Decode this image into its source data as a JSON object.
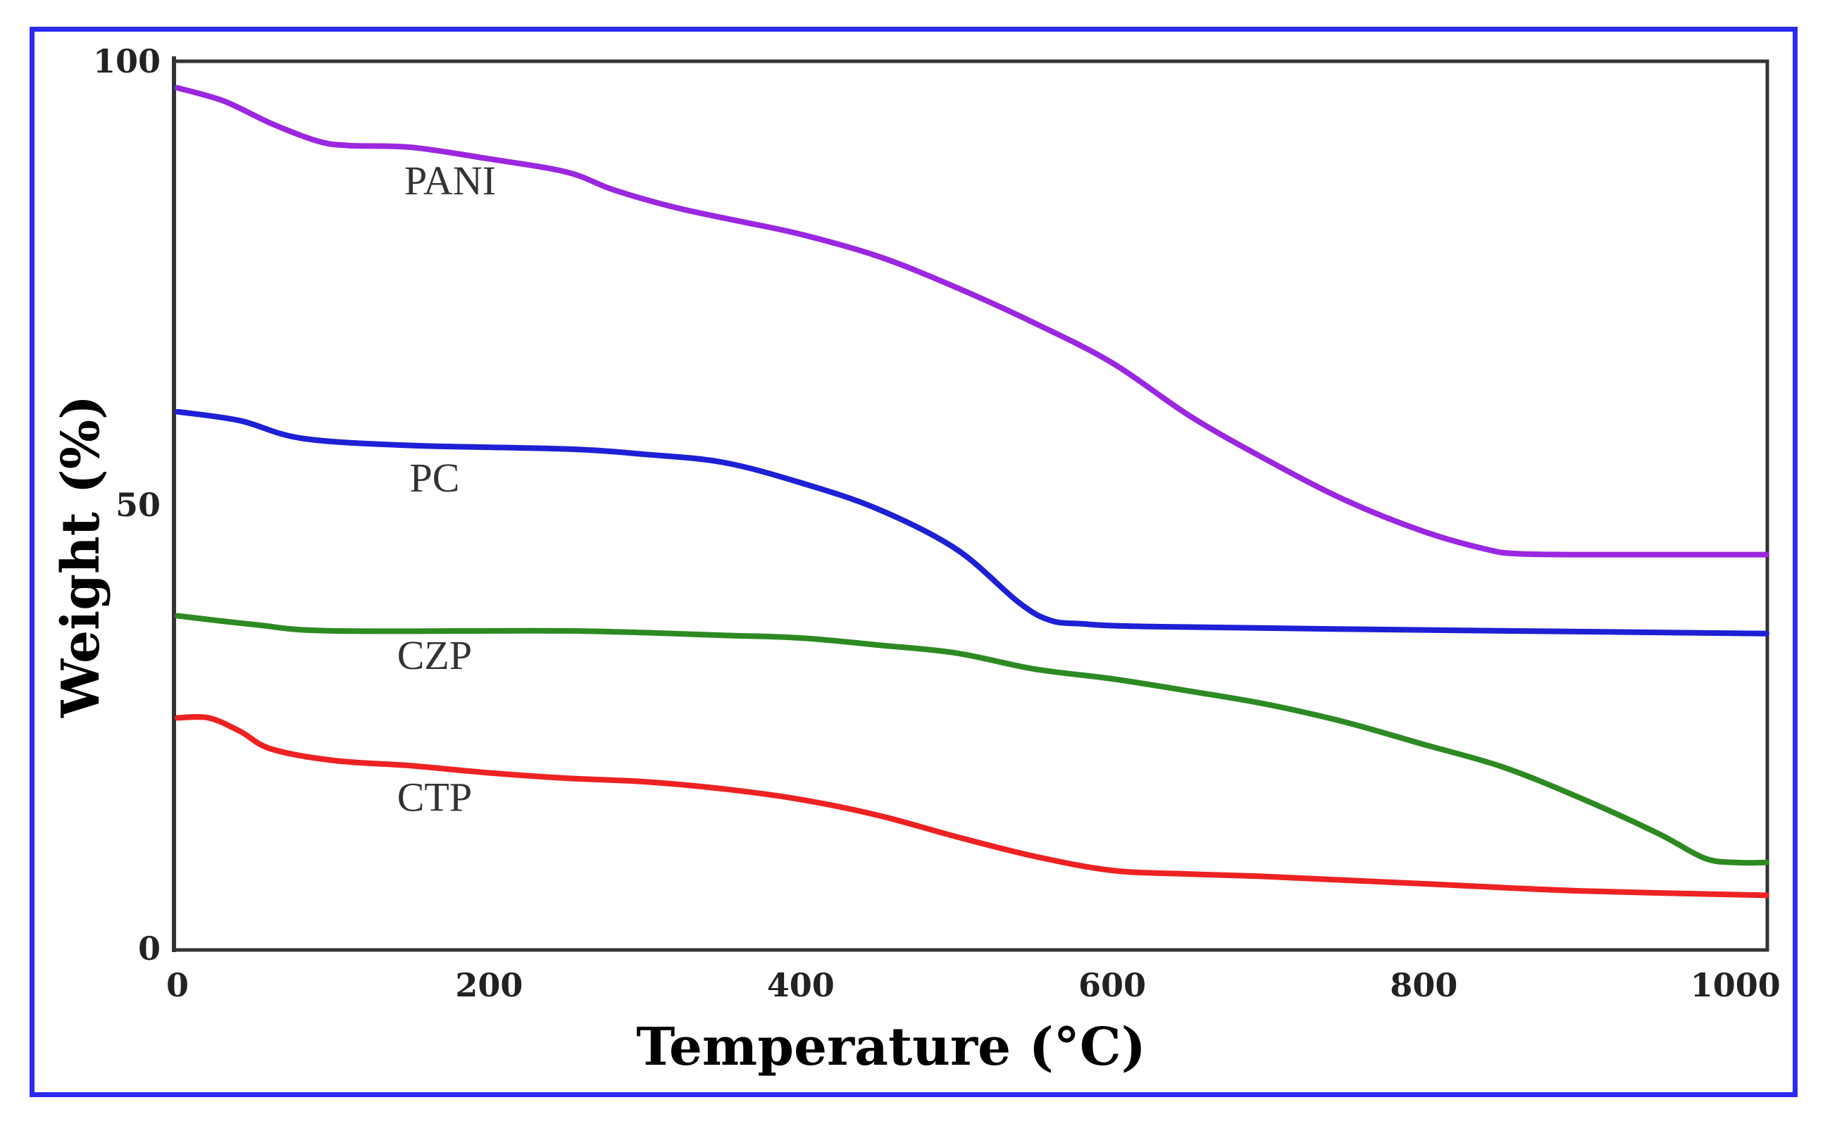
{
  "chart_data": {
    "type": "line",
    "title": "",
    "xlabel": "Temperature (°C)",
    "ylabel": "Weight (%)",
    "xlim": [
      0,
      1020
    ],
    "ylim": [
      0,
      100
    ],
    "x_ticks": [
      {
        "value": 0,
        "label": "0"
      },
      {
        "value": 200,
        "label": "200"
      },
      {
        "value": 400,
        "label": "400"
      },
      {
        "value": 600,
        "label": "600"
      },
      {
        "value": 800,
        "label": "800"
      },
      {
        "value": 1000,
        "label": "1000"
      }
    ],
    "y_ticks": [
      {
        "value": 0,
        "label": "0"
      },
      {
        "value": 50,
        "label": "50"
      },
      {
        "value": 100,
        "label": "100"
      }
    ],
    "grid": false,
    "series": [
      {
        "name": "PANI",
        "color": "#9b27e0",
        "label_at": [
          175,
          85
        ],
        "points": [
          [
            0,
            97
          ],
          [
            30,
            95.5
          ],
          [
            60,
            93
          ],
          [
            90,
            91
          ],
          [
            110,
            90.5
          ],
          [
            150,
            90.3
          ],
          [
            200,
            89
          ],
          [
            250,
            87.5
          ],
          [
            280,
            85.5
          ],
          [
            320,
            83.5
          ],
          [
            360,
            82
          ],
          [
            400,
            80.5
          ],
          [
            450,
            78
          ],
          [
            500,
            74.5
          ],
          [
            550,
            70.5
          ],
          [
            600,
            66
          ],
          [
            650,
            60
          ],
          [
            700,
            55
          ],
          [
            750,
            50.5
          ],
          [
            800,
            47
          ],
          [
            840,
            45
          ],
          [
            860,
            44.5
          ],
          [
            900,
            44.4
          ],
          [
            1020,
            44.4
          ]
        ]
      },
      {
        "name": "PC",
        "color": "#1d20d4",
        "label_at": [
          165,
          51.5
        ],
        "points": [
          [
            0,
            60.5
          ],
          [
            40,
            59.5
          ],
          [
            80,
            57.5
          ],
          [
            150,
            56.7
          ],
          [
            250,
            56.3
          ],
          [
            300,
            55.7
          ],
          [
            350,
            54.8
          ],
          [
            400,
            52.5
          ],
          [
            450,
            49.5
          ],
          [
            500,
            45
          ],
          [
            540,
            39
          ],
          [
            560,
            37
          ],
          [
            580,
            36.6
          ],
          [
            620,
            36.3
          ],
          [
            750,
            36
          ],
          [
            1020,
            35.5
          ]
        ]
      },
      {
        "name": "CZP",
        "color": "#2d8a22",
        "label_at": [
          165,
          31.5
        ],
        "points": [
          [
            0,
            37.5
          ],
          [
            50,
            36.5
          ],
          [
            100,
            35.8
          ],
          [
            250,
            35.8
          ],
          [
            350,
            35.3
          ],
          [
            400,
            35
          ],
          [
            450,
            34.2
          ],
          [
            500,
            33.3
          ],
          [
            550,
            31.5
          ],
          [
            600,
            30.4
          ],
          [
            650,
            29
          ],
          [
            700,
            27.5
          ],
          [
            750,
            25.5
          ],
          [
            800,
            23
          ],
          [
            850,
            20.5
          ],
          [
            900,
            17
          ],
          [
            950,
            13
          ],
          [
            980,
            10.2
          ],
          [
            1000,
            9.7
          ],
          [
            1020,
            9.7
          ]
        ]
      },
      {
        "name": "CTP",
        "color": "#ee2222",
        "label_at": [
          165,
          15.5
        ],
        "points": [
          [
            0,
            26
          ],
          [
            20,
            26
          ],
          [
            40,
            24.5
          ],
          [
            60,
            22.5
          ],
          [
            100,
            21.2
          ],
          [
            150,
            20.6
          ],
          [
            200,
            19.8
          ],
          [
            250,
            19.2
          ],
          [
            300,
            18.8
          ],
          [
            350,
            18
          ],
          [
            400,
            16.8
          ],
          [
            450,
            15
          ],
          [
            500,
            12.6
          ],
          [
            550,
            10.4
          ],
          [
            600,
            8.8
          ],
          [
            650,
            8.4
          ],
          [
            700,
            8.1
          ],
          [
            800,
            7.3
          ],
          [
            900,
            6.5
          ],
          [
            1020,
            6
          ]
        ]
      }
    ]
  }
}
